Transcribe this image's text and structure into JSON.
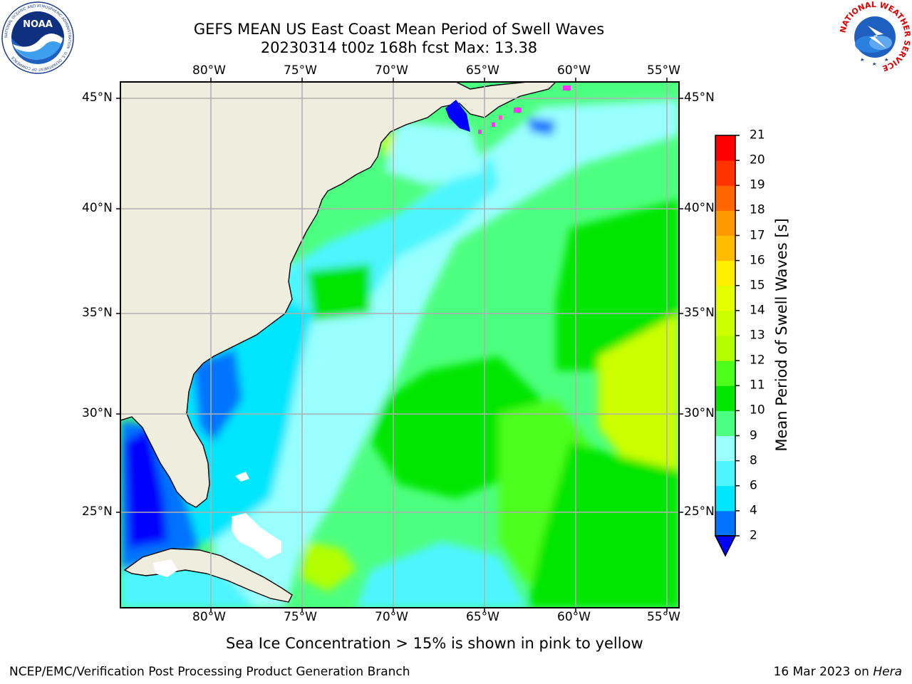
{
  "title": {
    "line1": "GEFS MEAN US East Coast Mean Period of Swell Waves",
    "line2": "20230314 t00z 168h fcst   Max: 13.38"
  },
  "map": {
    "lon_labels": [
      "80°W",
      "75°W",
      "70°W",
      "65°W",
      "60°W",
      "55°W"
    ],
    "lat_labels": [
      "45°N",
      "40°N",
      "35°N",
      "30°N",
      "25°N"
    ],
    "lon_range": [
      -85,
      -55
    ],
    "lat_range": [
      20.5,
      45.8
    ],
    "land_color": "#efedde",
    "grid_color": "#b0b0b0"
  },
  "colorbar": {
    "label": "Mean Period of Swell Waves [s]",
    "ticks": [
      "2",
      "4",
      "6",
      "8",
      "9",
      "10",
      "11",
      "12",
      "13",
      "14",
      "15",
      "16",
      "17",
      "18",
      "19",
      "20",
      "21"
    ],
    "colors": [
      "#0000ff",
      "#0073ff",
      "#00e6ff",
      "#4df5ff",
      "#99ffff",
      "#4dff80",
      "#00e600",
      "#4dff1a",
      "#b3ff00",
      "#ccff00",
      "#e6ff00",
      "#ffee00",
      "#ffbb00",
      "#ff9900",
      "#ff6600",
      "#ff3300",
      "#ff0000"
    ],
    "extend_color": "#0000ff"
  },
  "note": "Sea Ice Concentration > 15% is shown in pink to yellow",
  "footer": {
    "left": "NCEP/EMC/Verification Post Processing Product Generation Branch",
    "date": "16 Mar 2023 on ",
    "machine": "Hera"
  },
  "logos": {
    "noaa_text": "NOAA",
    "noaa_ring": "NATIONAL OCEANIC AND ATMOSPHERIC ADMINISTRATION · U.S. DEPARTMENT OF COMMERCE",
    "nws_ring": "NATIONAL WEATHER SERVICE"
  }
}
